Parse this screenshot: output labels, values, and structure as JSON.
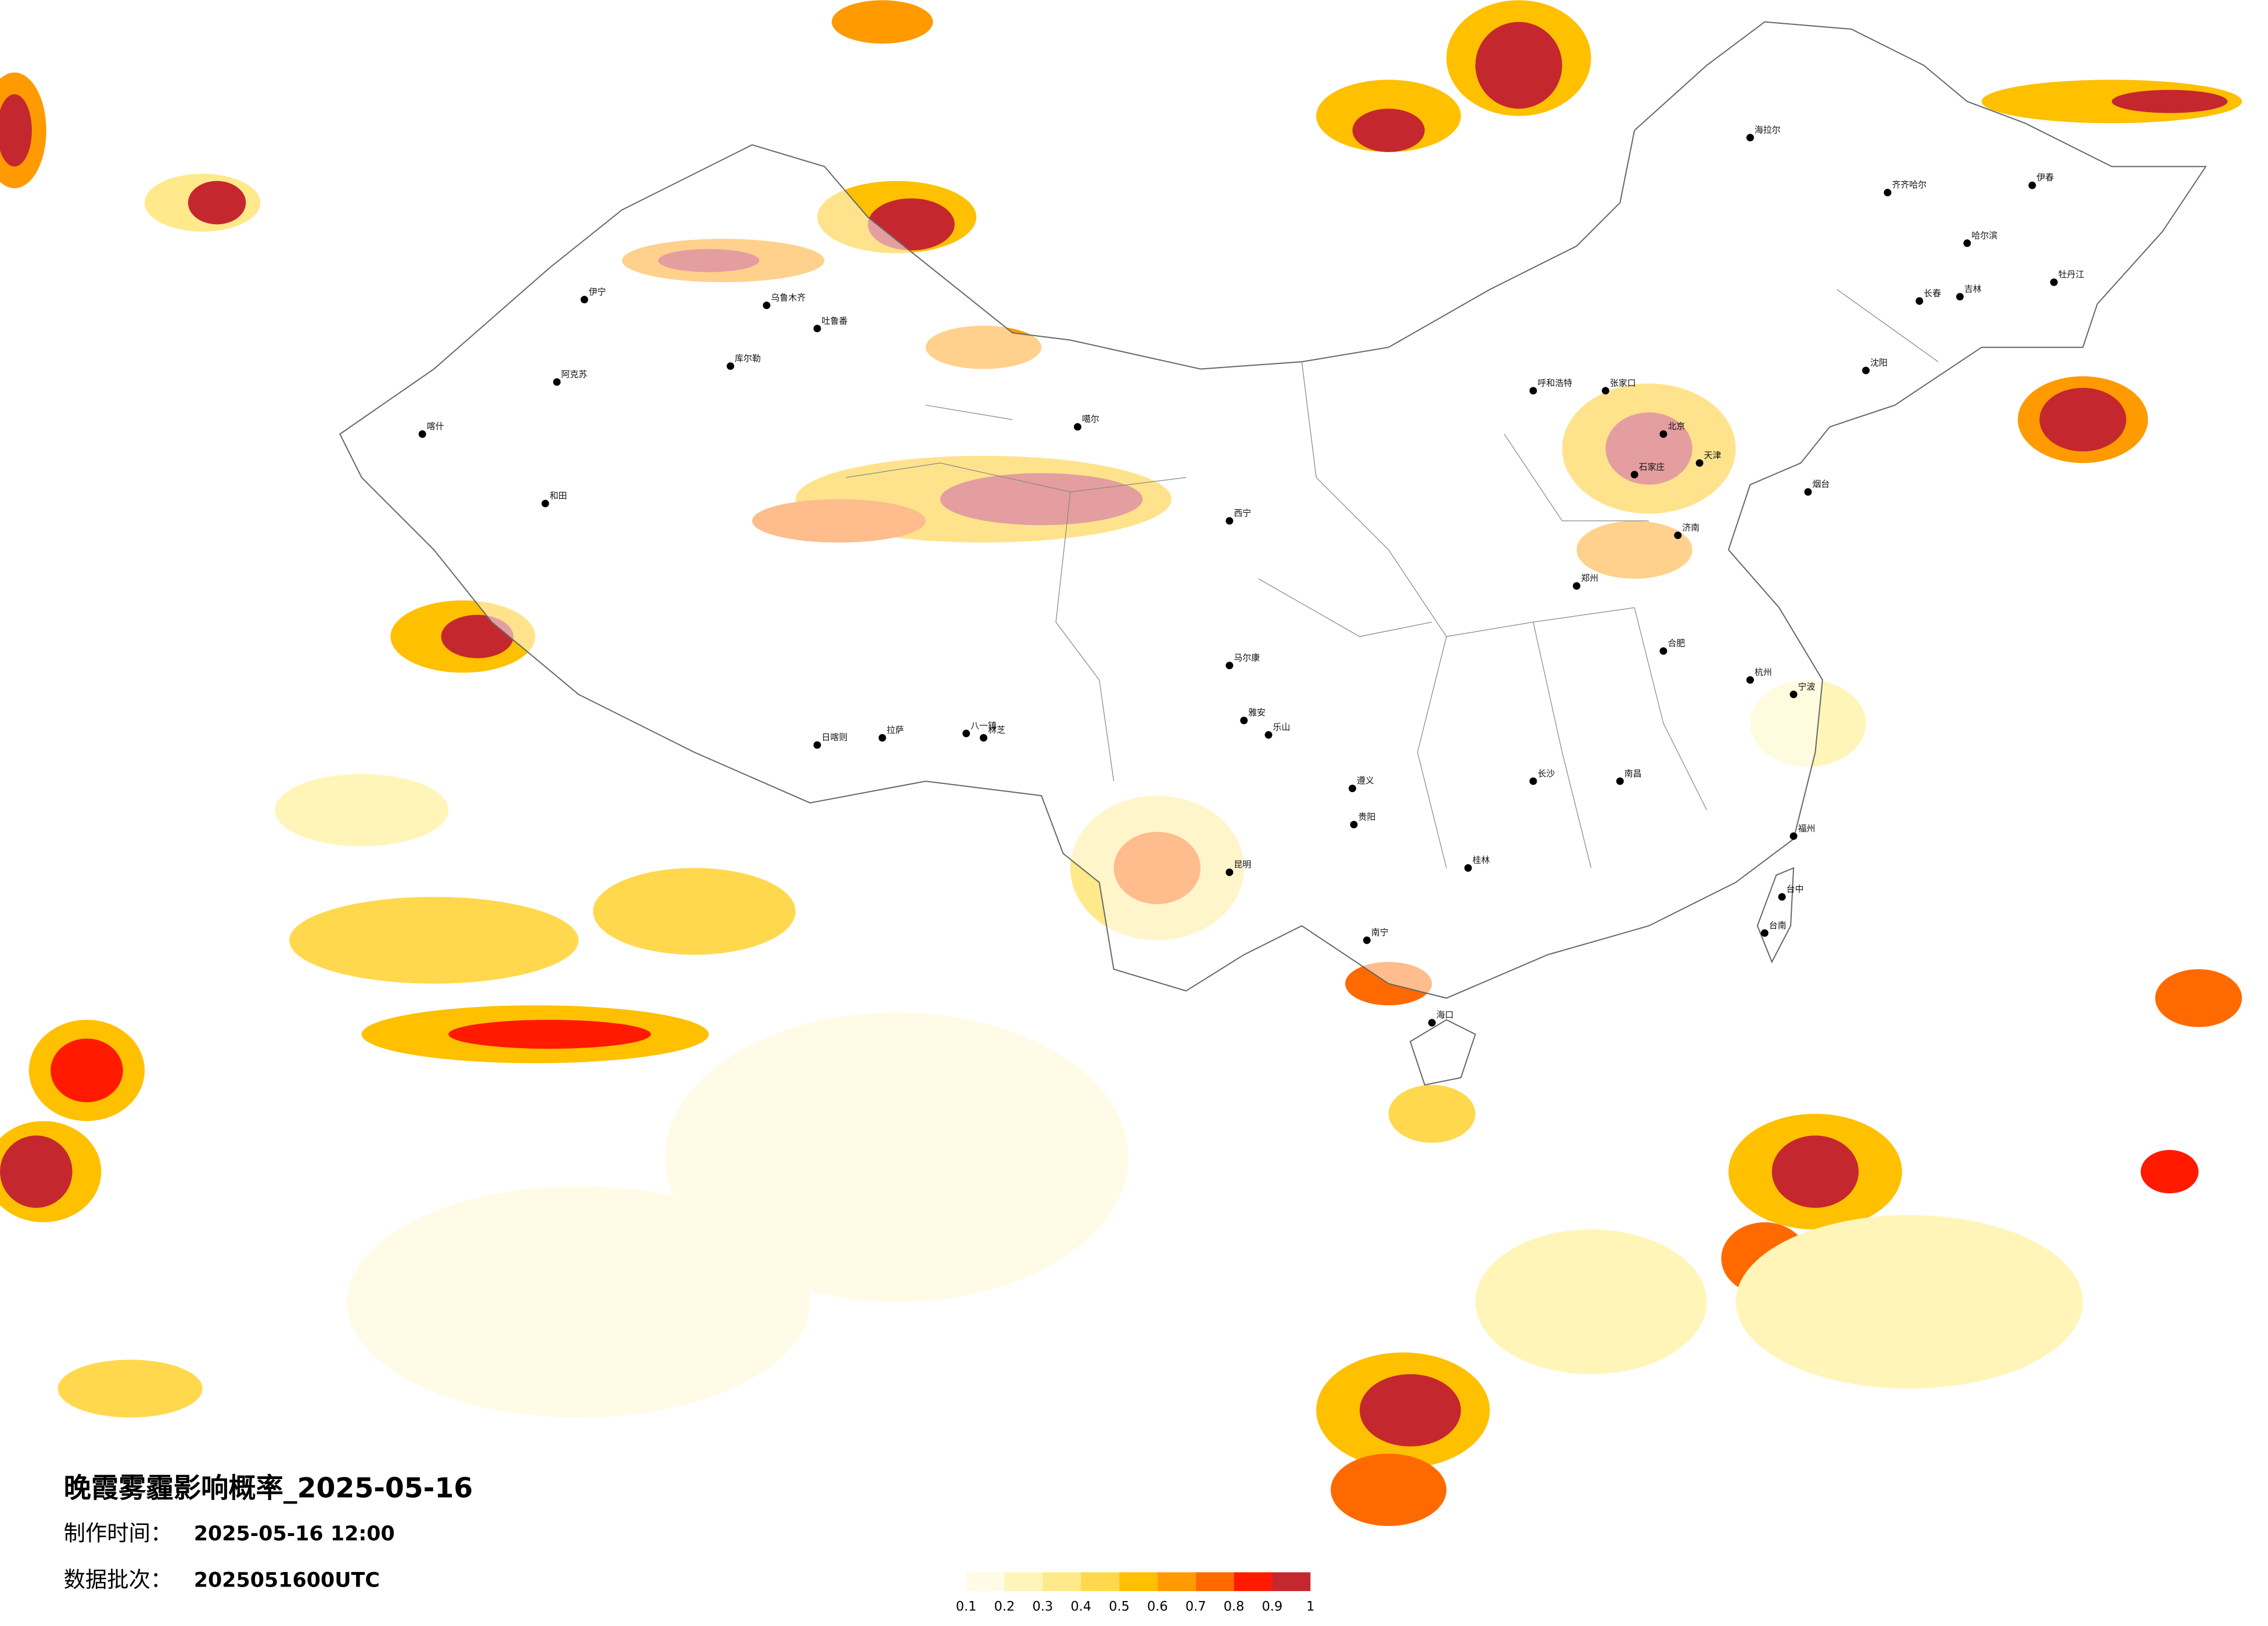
{
  "map": {
    "title": "晚霞雾霾影响概率_2025-05-16",
    "made_time_label": "制作时间：",
    "made_time": "2025-05-16 12:00",
    "batch_label": "数据批次：",
    "batch": "2025051600UTC",
    "legend": {
      "ticks": [
        0.1,
        0.2,
        0.3,
        0.4,
        0.5,
        0.6,
        0.7,
        0.8,
        0.9,
        1
      ],
      "colors": [
        "#fffbe6",
        "#fff5b8",
        "#ffe98a",
        "#ffd84d",
        "#ffc000",
        "#ff9a00",
        "#ff6a00",
        "#ff1a00",
        "#c4282e"
      ]
    },
    "cities": [
      "乌鲁木齐",
      "伊宁",
      "阿克苏",
      "喀什",
      "和田",
      "库尔勒",
      "吐鲁番",
      "日喀则",
      "拉萨",
      "八一镇",
      "林芝",
      "噶尔",
      "齐齐哈尔",
      "哈尔滨",
      "长春",
      "吉林",
      "沈阳",
      "伊春",
      "牡丹江",
      "海拉尔",
      "呼和浩特",
      "张家口",
      "石家庄",
      "北京",
      "天津",
      "郑州",
      "西宁",
      "马尔康",
      "雅安",
      "乐山",
      "遵义",
      "贵阳",
      "昆明",
      "南宁",
      "海口",
      "桂林",
      "长沙",
      "南昌",
      "福州",
      "台中",
      "台南",
      "烟台",
      "济南",
      "合肥",
      "杭州",
      "宁波"
    ]
  }
}
